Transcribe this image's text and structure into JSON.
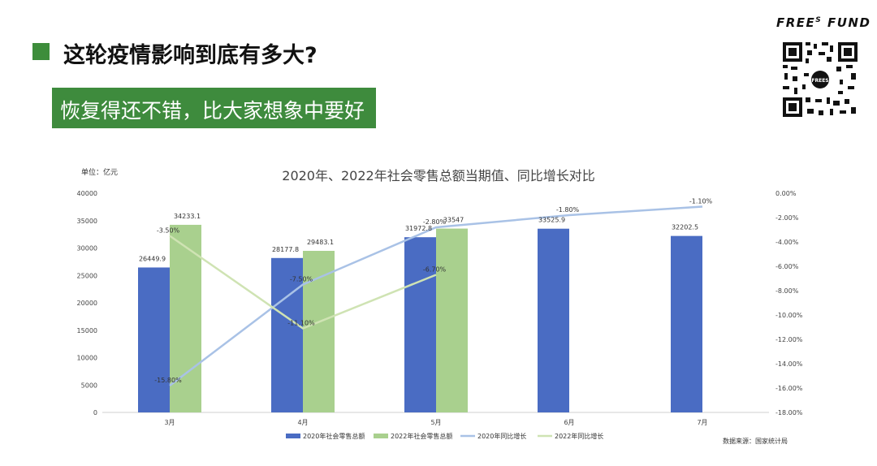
{
  "header": {
    "title": "这轮疫情影响到底有多大?",
    "subtitle": "恢复得还不错，比大家想象中要好"
  },
  "brand": {
    "name_pre": "FREE",
    "name_sup": "S",
    "name_post": " FUND",
    "qr_center": "FREES"
  },
  "colors": {
    "accent_green": "#3e8b3d",
    "bar_2020": "#4a6cc3",
    "bar_2022": "#a9d08e",
    "line_2020": "#a9c2e6",
    "line_2022": "#cfe3b3"
  },
  "chart_data": {
    "type": "bar",
    "title": "2020年、2022年社会零售总额当期值、同比增长对比",
    "unit_label": "单位：亿元",
    "source": "数据来源：国家统计局",
    "categories": [
      "3月",
      "4月",
      "5月",
      "6月",
      "7月"
    ],
    "y_left": {
      "min": 0,
      "max": 40000,
      "ticks": [
        "0",
        "5000",
        "10000",
        "15000",
        "20000",
        "25000",
        "30000",
        "35000",
        "40000"
      ]
    },
    "y_right": {
      "min": -18,
      "max": 0,
      "ticks": [
        "0.00%",
        "-2.00%",
        "-4.00%",
        "-6.00%",
        "-8.00%",
        "-10.00%",
        "-12.00%",
        "-14.00%",
        "-16.00%",
        "-18.00%"
      ]
    },
    "bar_series": [
      {
        "name": "2020年社会零售总额",
        "values": [
          26449.9,
          28177.8,
          31972.8,
          33525.9,
          32202.5
        ],
        "labels": [
          "26449.9",
          "28177.8",
          "31972.8",
          "33525.9",
          "32202.5"
        ]
      },
      {
        "name": "2022年社会零售总额",
        "values": [
          34233.1,
          29483.1,
          33547,
          null,
          null
        ],
        "labels": [
          "34233.1",
          "29483.1",
          "33547",
          "",
          ""
        ]
      }
    ],
    "line_series": [
      {
        "name": "2020年同比增长",
        "values": [
          -15.8,
          -7.5,
          -2.8,
          -1.8,
          -1.1
        ],
        "labels": [
          "-15.80%",
          "-7.50%",
          "-2.80%",
          "-1.80%",
          "-1.10%"
        ]
      },
      {
        "name": "2022年同比增长",
        "values": [
          -3.5,
          -11.1,
          -6.7,
          null,
          null
        ],
        "labels": [
          "-3.50%",
          "-11.10%",
          "-6.70%",
          "",
          ""
        ]
      }
    ],
    "grid": false,
    "legend": "bottom"
  }
}
